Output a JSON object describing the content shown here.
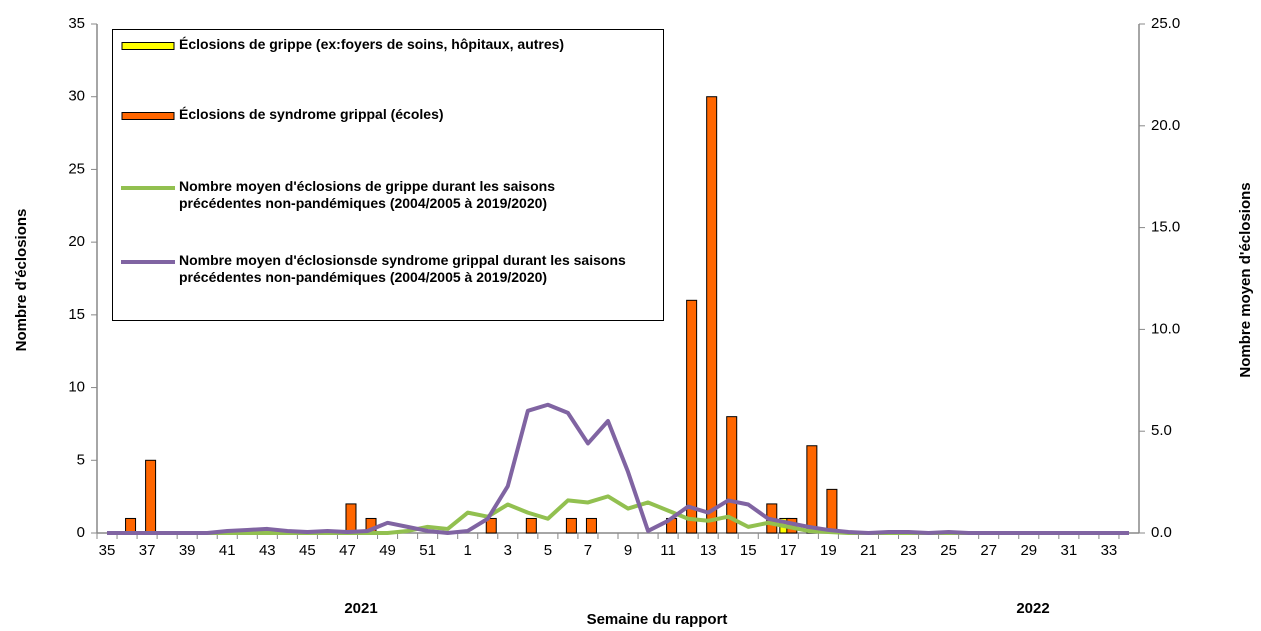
{
  "chart_data": {
    "type": "bar-line",
    "xlabel": "Semaine du rapport",
    "ylabel": "Nombre d'éclosions",
    "y2label": "Nombre moyen d'éclosions",
    "year_labels": [
      "2021",
      "2022"
    ],
    "categories": [
      "35",
      null,
      "37",
      null,
      "39",
      null,
      "41",
      null,
      "43",
      null,
      "45",
      null,
      "47",
      null,
      "49",
      null,
      "51",
      null,
      "1",
      null,
      "3",
      null,
      "5",
      null,
      "7",
      null,
      "9",
      null,
      "11",
      null,
      "13",
      null,
      "15",
      null,
      "17",
      null,
      "19",
      null,
      "21",
      null,
      "23",
      null,
      "25",
      null,
      "27",
      null,
      "29",
      null,
      "31",
      null,
      "33",
      null
    ],
    "ylim": [
      0,
      35
    ],
    "yticks": [
      0,
      5,
      10,
      15,
      20,
      25,
      30,
      35
    ],
    "y2lim": [
      0,
      25
    ],
    "y2ticks": [
      {
        "value": 0,
        "label": "0.0"
      },
      {
        "value": 5,
        "label": "5.0"
      },
      {
        "value": 10,
        "label": "10.0"
      },
      {
        "value": 15,
        "label": "15.0"
      },
      {
        "value": 20,
        "label": "20.0"
      },
      {
        "value": 25,
        "label": "25.0"
      }
    ],
    "series": [
      {
        "name": "Éclosions de grippe (ex:foyers de soins, hôpitaux, autres)",
        "type": "bar",
        "color": "#ffff00",
        "values": [
          0,
          0,
          0,
          0,
          0,
          0,
          0,
          0,
          0,
          0,
          0,
          0,
          0,
          0,
          0,
          0,
          0,
          0,
          0,
          0,
          0,
          0,
          0,
          0,
          0,
          0,
          0,
          0,
          0,
          0,
          0,
          0,
          0,
          0,
          1,
          0,
          0,
          0,
          0,
          0,
          0,
          0,
          0,
          0,
          0,
          0,
          0,
          0,
          0,
          0,
          0,
          0
        ]
      },
      {
        "name": "Éclosions de syndrome grippal (écoles)",
        "type": "bar",
        "color": "#ff6600",
        "values": [
          0,
          1,
          5,
          0,
          0,
          0,
          0,
          0,
          0,
          0,
          0,
          0,
          2,
          1,
          0,
          0,
          0,
          0,
          0,
          1,
          0,
          1,
          0,
          1,
          1,
          0,
          0,
          0,
          1,
          16,
          30,
          8,
          0,
          2,
          1,
          6,
          3,
          0,
          0,
          0,
          0,
          0,
          0,
          0,
          0,
          0,
          0,
          0,
          0,
          0,
          0,
          0
        ]
      },
      {
        "name": "Nombre moyen d'éclosions de grippe durant les saisons précédentes non-pandémiques (2004/2005 à 2019/2020)",
        "type": "line",
        "axis": "y2",
        "color": "#92c050",
        "values": [
          0,
          0,
          0,
          0,
          0,
          0,
          0,
          0,
          0,
          0,
          0,
          0,
          0,
          0,
          0,
          0.1,
          0.3,
          0.2,
          1.0,
          0.8,
          1.4,
          1.0,
          0.7,
          1.6,
          1.5,
          1.8,
          1.2,
          1.5,
          1.1,
          0.7,
          0.6,
          0.8,
          0.3,
          0.5,
          0.3,
          0.1,
          0.05,
          0,
          0,
          0,
          0,
          0,
          0,
          0,
          0,
          0,
          0,
          0,
          0,
          0,
          0,
          0
        ]
      },
      {
        "name": "Nombre moyen d'éclosionsde syndrome grippal  durant les saisons précédentes non-pandémiques (2004/2005 à 2019/2020)",
        "type": "line",
        "axis": "y2",
        "color": "#8064a2",
        "values": [
          0,
          0,
          0,
          0,
          0,
          0,
          0.1,
          0.15,
          0.2,
          0.1,
          0.05,
          0.1,
          0.05,
          0.1,
          0.5,
          0.3,
          0.1,
          0,
          0.1,
          0.7,
          2.3,
          6.0,
          6.3,
          5.9,
          4.4,
          5.5,
          3.0,
          0.1,
          0.6,
          1.3,
          1.0,
          1.6,
          1.4,
          0.7,
          0.5,
          0.3,
          0.15,
          0.05,
          0,
          0.05,
          0.05,
          0,
          0.05,
          0,
          0,
          0,
          0,
          0,
          0,
          0,
          0,
          0
        ]
      }
    ]
  }
}
